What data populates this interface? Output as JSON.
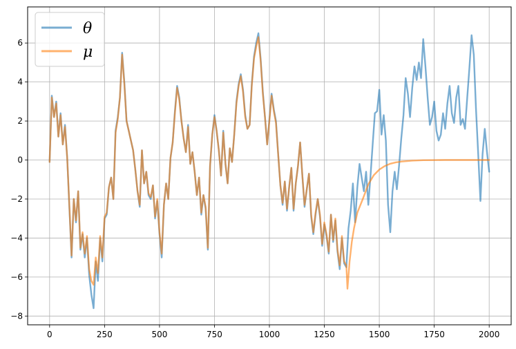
{
  "chart_data": {
    "type": "line",
    "title": "",
    "xlabel": "",
    "ylabel": "",
    "xlim": [
      -100,
      2100
    ],
    "ylim": [
      -8.45,
      7.85
    ],
    "xticks": [
      0,
      250,
      500,
      750,
      1000,
      1250,
      1500,
      1750,
      2000
    ],
    "yticks": [
      -8,
      -6,
      -4,
      -2,
      0,
      2,
      4,
      6
    ],
    "grid": true,
    "legend": {
      "position": "top-left"
    },
    "series": [
      {
        "name": "θ",
        "color": "#1f77b4",
        "x": [
          0,
          10,
          20,
          30,
          40,
          50,
          60,
          70,
          80,
          90,
          100,
          110,
          120,
          130,
          140,
          150,
          160,
          170,
          180,
          190,
          200,
          210,
          220,
          230,
          240,
          250,
          260,
          270,
          280,
          290,
          300,
          310,
          320,
          330,
          340,
          350,
          360,
          370,
          380,
          390,
          400,
          410,
          420,
          430,
          440,
          450,
          460,
          470,
          480,
          490,
          500,
          510,
          520,
          530,
          540,
          550,
          560,
          570,
          580,
          590,
          600,
          610,
          620,
          630,
          640,
          650,
          660,
          670,
          680,
          690,
          700,
          710,
          720,
          730,
          740,
          750,
          760,
          770,
          780,
          790,
          800,
          810,
          820,
          830,
          840,
          850,
          860,
          870,
          880,
          890,
          900,
          910,
          920,
          930,
          940,
          950,
          960,
          970,
          980,
          990,
          1000,
          1010,
          1020,
          1030,
          1040,
          1050,
          1060,
          1070,
          1080,
          1090,
          1100,
          1110,
          1120,
          1130,
          1140,
          1150,
          1160,
          1170,
          1180,
          1190,
          1200,
          1210,
          1220,
          1230,
          1240,
          1250,
          1260,
          1270,
          1280,
          1290,
          1300,
          1310,
          1320,
          1330,
          1340,
          1350,
          1360,
          1370,
          1380,
          1390,
          1400,
          1410,
          1420,
          1430,
          1440,
          1450,
          1460,
          1470,
          1480,
          1490,
          1500,
          1510,
          1520,
          1530,
          1540,
          1550,
          1560,
          1570,
          1580,
          1590,
          1600,
          1610,
          1620,
          1630,
          1640,
          1650,
          1660,
          1670,
          1680,
          1690,
          1700,
          1710,
          1720,
          1730,
          1740,
          1750,
          1760,
          1770,
          1780,
          1790,
          1800,
          1810,
          1820,
          1830,
          1840,
          1850,
          1860,
          1870,
          1880,
          1890,
          1900,
          1910,
          1920,
          1930,
          1940,
          1950,
          1960,
          1970,
          1980,
          1990,
          2000
        ],
        "y": [
          -0.1,
          3.3,
          2.2,
          3.0,
          1.2,
          2.4,
          0.8,
          1.8,
          0.1,
          -2.5,
          -5.0,
          -2.0,
          -3.2,
          -1.6,
          -4.6,
          -3.8,
          -5.0,
          -4.0,
          -5.9,
          -6.9,
          -7.6,
          -5.2,
          -6.2,
          -4.0,
          -5.2,
          -3.0,
          -2.8,
          -1.4,
          -0.9,
          -2.0,
          1.5,
          2.2,
          3.2,
          5.5,
          4.0,
          2.0,
          1.5,
          1.0,
          0.5,
          -0.5,
          -1.6,
          -2.4,
          0.5,
          -1.2,
          -0.6,
          -1.8,
          -2.0,
          -1.3,
          -3.0,
          -2.1,
          -3.8,
          -5.0,
          -2.3,
          -1.2,
          -2.0,
          0.1,
          0.9,
          2.5,
          3.8,
          3.2,
          2.0,
          1.1,
          0.4,
          1.8,
          -0.2,
          0.4,
          -0.6,
          -1.8,
          -0.9,
          -2.8,
          -1.8,
          -2.5,
          -4.6,
          -0.3,
          1.3,
          2.3,
          1.5,
          0.5,
          -0.8,
          1.5,
          -0.2,
          -1.2,
          0.6,
          -0.1,
          1.3,
          3.0,
          3.9,
          4.4,
          3.6,
          2.3,
          1.6,
          1.8,
          3.9,
          5.3,
          6.0,
          6.5,
          5.2,
          3.5,
          2.2,
          0.8,
          2.1,
          3.4,
          2.6,
          2.0,
          0.3,
          -1.3,
          -2.3,
          -1.1,
          -2.6,
          -1.4,
          -0.4,
          -2.6,
          -1.2,
          -0.3,
          0.9,
          -0.8,
          -2.4,
          -1.5,
          -0.7,
          -2.9,
          -3.8,
          -2.8,
          -2.0,
          -2.9,
          -4.4,
          -3.3,
          -3.9,
          -4.8,
          -2.8,
          -4.2,
          -3.1,
          -4.7,
          -5.6,
          -4.0,
          -5.3,
          -5.5,
          -3.5,
          -2.6,
          -1.2,
          -3.2,
          -1.4,
          -0.2,
          -0.9,
          -1.6,
          -0.6,
          -2.3,
          -0.8,
          0.8,
          2.4,
          2.5,
          3.6,
          1.3,
          2.3,
          1.0,
          -2.3,
          -3.7,
          -1.6,
          -0.6,
          -1.5,
          -0.3,
          1.1,
          2.3,
          4.2,
          3.4,
          2.2,
          3.7,
          4.8,
          4.1,
          5.0,
          4.2,
          6.2,
          4.8,
          3.2,
          1.8,
          2.2,
          3.0,
          1.5,
          1.0,
          1.3,
          2.4,
          1.6,
          2.9,
          3.8,
          2.4,
          1.9,
          3.2,
          3.8,
          1.8,
          2.1,
          1.6,
          3.2,
          4.7,
          6.4,
          5.4,
          2.6,
          0.3,
          -2.1,
          0.3,
          1.6,
          0.4,
          -0.6
        ]
      },
      {
        "name": "μ",
        "color": "#ff7f0e",
        "x": [
          0,
          10,
          20,
          30,
          40,
          50,
          60,
          70,
          80,
          90,
          100,
          110,
          120,
          130,
          140,
          150,
          160,
          170,
          180,
          190,
          200,
          210,
          220,
          230,
          240,
          250,
          260,
          270,
          280,
          290,
          300,
          310,
          320,
          330,
          340,
          350,
          360,
          370,
          380,
          390,
          400,
          410,
          420,
          430,
          440,
          450,
          460,
          470,
          480,
          490,
          500,
          510,
          520,
          530,
          540,
          550,
          560,
          570,
          580,
          590,
          600,
          610,
          620,
          630,
          640,
          650,
          660,
          670,
          680,
          690,
          700,
          710,
          720,
          730,
          740,
          750,
          760,
          770,
          780,
          790,
          800,
          810,
          820,
          830,
          840,
          850,
          860,
          870,
          880,
          890,
          900,
          910,
          920,
          930,
          940,
          950,
          960,
          970,
          980,
          990,
          1000,
          1010,
          1020,
          1030,
          1040,
          1050,
          1060,
          1070,
          1080,
          1090,
          1100,
          1110,
          1120,
          1130,
          1140,
          1150,
          1160,
          1170,
          1180,
          1190,
          1200,
          1210,
          1220,
          1230,
          1240,
          1250,
          1260,
          1270,
          1280,
          1290,
          1300,
          1310,
          1320,
          1330,
          1340,
          1350,
          1355,
          1365,
          1375,
          1385,
          1400,
          1425,
          1450,
          1475,
          1500,
          1525,
          1550,
          1575,
          1600,
          1650,
          1700,
          1750,
          1800,
          1850,
          1900,
          1950,
          2000
        ],
        "y": [
          -0.1,
          3.2,
          2.2,
          2.9,
          1.2,
          2.3,
          0.8,
          1.7,
          0.1,
          -2.4,
          -4.9,
          -2.0,
          -3.1,
          -1.6,
          -4.5,
          -3.7,
          -4.8,
          -3.9,
          -5.6,
          -6.2,
          -6.4,
          -5.0,
          -5.8,
          -3.9,
          -5.0,
          -2.9,
          -2.7,
          -1.4,
          -0.9,
          -2.0,
          1.4,
          2.1,
          3.2,
          5.4,
          3.9,
          2.0,
          1.5,
          1.0,
          0.5,
          -0.5,
          -1.6,
          -2.3,
          0.5,
          -1.2,
          -0.6,
          -1.7,
          -1.9,
          -1.3,
          -2.9,
          -2.0,
          -3.7,
          -4.8,
          -2.3,
          -1.2,
          -2.0,
          0.1,
          0.9,
          2.4,
          3.7,
          3.1,
          2.0,
          1.1,
          0.4,
          1.7,
          -0.2,
          0.4,
          -0.6,
          -1.8,
          -0.9,
          -2.7,
          -1.8,
          -2.4,
          -4.5,
          -0.3,
          1.3,
          2.2,
          1.5,
          0.5,
          -0.8,
          1.4,
          -0.2,
          -1.2,
          0.6,
          -0.1,
          1.3,
          2.9,
          3.8,
          4.3,
          3.5,
          2.2,
          1.6,
          1.8,
          3.8,
          5.2,
          5.8,
          6.3,
          5.1,
          3.4,
          2.2,
          0.8,
          2.0,
          3.3,
          2.5,
          1.9,
          0.3,
          -1.3,
          -2.2,
          -1.1,
          -2.5,
          -1.4,
          -0.4,
          -2.5,
          -1.2,
          -0.3,
          0.9,
          -0.8,
          -2.3,
          -1.5,
          -0.7,
          -2.8,
          -3.7,
          -2.7,
          -2.0,
          -2.8,
          -4.3,
          -3.2,
          -3.8,
          -4.7,
          -2.8,
          -4.1,
          -3.0,
          -4.6,
          -5.4,
          -3.9,
          -5.2,
          -5.4,
          -6.6,
          -5.2,
          -4.2,
          -3.5,
          -2.7,
          -2.0,
          -1.25,
          -0.78,
          -0.49,
          -0.31,
          -0.19,
          -0.12,
          -0.08,
          -0.03,
          -0.01,
          -0.005,
          0,
          0,
          0,
          0,
          0
        ]
      }
    ]
  }
}
